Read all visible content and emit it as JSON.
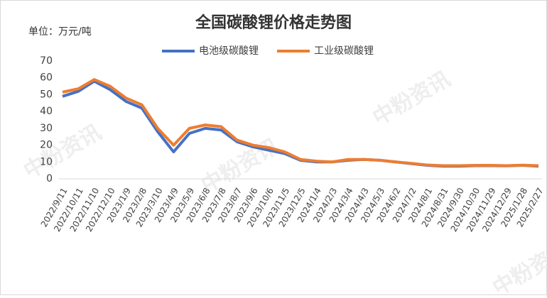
{
  "chart_data": {
    "type": "line",
    "title": "全国碳酸锂价格走势图",
    "y_axis_label": "单位：万元/吨",
    "watermark": "中粉资讯",
    "categories": [
      "2022/9/11",
      "2022/10/11",
      "2022/11/10",
      "2022/12/10",
      "2023/1/9",
      "2023/2/8",
      "2023/3/10",
      "2023/4/9",
      "2023/5/9",
      "2023/6/8",
      "2023/7/8",
      "2023/8/7",
      "2023/9/6",
      "2023/10/6",
      "2023/11/5",
      "2023/12/5",
      "2024/1/4",
      "2024/2/3",
      "2024/3/4",
      "2024/4/3",
      "2024/5/3",
      "2024/6/2",
      "2024/7/2",
      "2024/8/1",
      "2024/8/31",
      "2024/9/30",
      "2024/10/30",
      "2024/11/29",
      "2024/12/29",
      "2025/1/28",
      "2025/2/27"
    ],
    "series": [
      {
        "name": "电池级碳酸锂",
        "color": "#4472c4",
        "values": [
          49,
          52,
          58,
          53,
          46,
          42,
          28,
          16,
          27,
          30,
          29,
          22,
          19,
          17,
          15,
          11,
          10,
          10,
          11,
          11.5,
          11,
          10,
          9,
          8,
          7.5,
          7.5,
          7.8,
          7.8,
          7.7,
          8,
          7.5
        ]
      },
      {
        "name": "工业级碳酸锂",
        "color": "#ed7d31",
        "values": [
          51.5,
          53.5,
          59,
          55,
          48,
          44,
          30,
          20,
          30,
          32,
          31,
          23,
          20,
          18.5,
          16,
          11.5,
          10.5,
          10,
          11.5,
          11.5,
          11,
          10,
          9.2,
          8.2,
          7.8,
          7.8,
          8,
          8,
          7.8,
          8.1,
          7.8
        ]
      }
    ],
    "ylim": [
      0,
      70
    ],
    "yticks": [
      0,
      10,
      20,
      30,
      40,
      50,
      60,
      70
    ],
    "grid": false
  }
}
